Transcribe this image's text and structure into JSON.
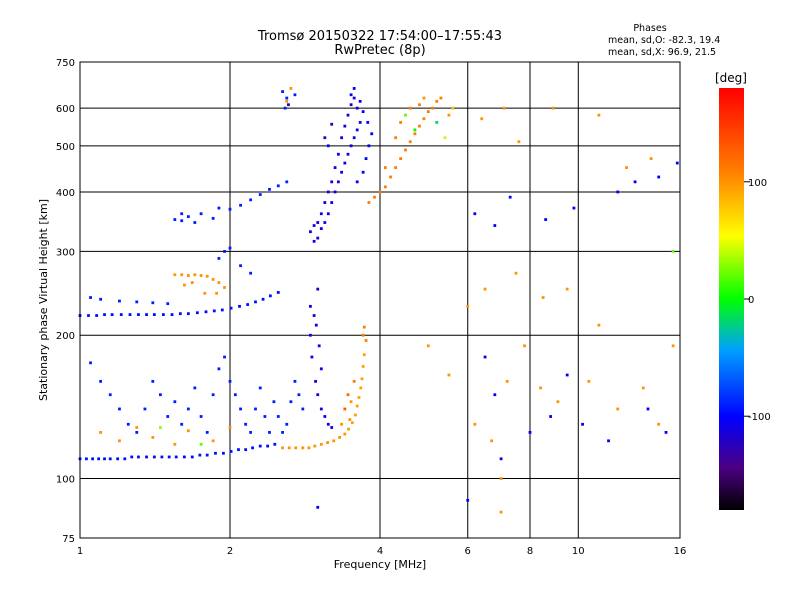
{
  "title": "Tromsø 20150322 17:54:00–17:55:43",
  "subtitle": "RwPretec (8p)",
  "stats": {
    "heading": "Phases",
    "line_o": "mean, sd,O: -82.3, 19.4",
    "line_x": "mean, sd,X:  96.9, 21.5"
  },
  "colorbar": {
    "label": "[deg]",
    "ticks": [
      {
        "value": 100,
        "label": "100"
      },
      {
        "value": 0,
        "label": "0"
      },
      {
        "value": -100,
        "label": "-100"
      }
    ],
    "range": [
      -180,
      180
    ]
  },
  "chart_data": {
    "type": "scatter",
    "title": "Tromsø 20150322 17:54:00–17:55:43",
    "subtitle": "RwPretec (8p)",
    "xlabel": "Frequency [MHz]",
    "ylabel": "Stationary phase Virtual Height [km]",
    "x_scale": "log",
    "y_scale": "log",
    "xlim": [
      1,
      16
    ],
    "ylim": [
      75,
      750
    ],
    "xticks": [
      {
        "value": 1,
        "label": "1"
      },
      {
        "value": 2,
        "label": "2"
      },
      {
        "value": 4,
        "label": "4"
      },
      {
        "value": 6,
        "label": "6"
      },
      {
        "value": 8,
        "label": "8"
      },
      {
        "value": 10,
        "label": "10"
      },
      {
        "value": 16,
        "label": "16"
      }
    ],
    "yticks": [
      {
        "value": 75,
        "label": "75"
      },
      {
        "value": 100,
        "label": "100"
      },
      {
        "value": 200,
        "label": "200"
      },
      {
        "value": 300,
        "label": "300"
      },
      {
        "value": 400,
        "label": "400"
      },
      {
        "value": 500,
        "label": "500"
      },
      {
        "value": 600,
        "label": "600"
      },
      {
        "value": 750,
        "label": "750"
      }
    ],
    "grid": true,
    "color_scale": "rainbow, phase in degrees (-180 black/purple to 180 red)",
    "points": [
      [
        1.0,
        110,
        -95
      ],
      [
        1.03,
        110,
        -95
      ],
      [
        1.06,
        110,
        -95
      ],
      [
        1.09,
        110,
        -95
      ],
      [
        1.12,
        110,
        -95
      ],
      [
        1.15,
        110,
        -95
      ],
      [
        1.19,
        110,
        -95
      ],
      [
        1.23,
        110,
        -95
      ],
      [
        1.27,
        111,
        -95
      ],
      [
        1.31,
        111,
        -95
      ],
      [
        1.36,
        111,
        -95
      ],
      [
        1.41,
        111,
        -95
      ],
      [
        1.46,
        111,
        -95
      ],
      [
        1.51,
        111,
        -95
      ],
      [
        1.56,
        111,
        -95
      ],
      [
        1.62,
        111,
        -95
      ],
      [
        1.68,
        111,
        -95
      ],
      [
        1.74,
        112,
        -95
      ],
      [
        1.8,
        112,
        -95
      ],
      [
        1.87,
        113,
        -95
      ],
      [
        1.94,
        113,
        -95
      ],
      [
        2.01,
        114,
        -95
      ],
      [
        2.08,
        115,
        -95
      ],
      [
        2.15,
        115,
        -95
      ],
      [
        2.22,
        116,
        -95
      ],
      [
        2.3,
        117,
        -95
      ],
      [
        2.38,
        117,
        -95
      ],
      [
        2.46,
        118,
        -95
      ],
      [
        2.55,
        116,
        100
      ],
      [
        2.63,
        116,
        100
      ],
      [
        2.71,
        116,
        100
      ],
      [
        2.8,
        116,
        100
      ],
      [
        2.88,
        116,
        100
      ],
      [
        2.96,
        117,
        100
      ],
      [
        3.05,
        118,
        100
      ],
      [
        3.14,
        119,
        100
      ],
      [
        3.23,
        120,
        100
      ],
      [
        3.32,
        122,
        100
      ],
      [
        3.4,
        124,
        100
      ],
      [
        3.46,
        127,
        95
      ],
      [
        3.52,
        131,
        95
      ],
      [
        3.57,
        136,
        95
      ],
      [
        3.6,
        142,
        95
      ],
      [
        3.63,
        148,
        95
      ],
      [
        3.66,
        155,
        95
      ],
      [
        3.68,
        162,
        95
      ],
      [
        3.7,
        172,
        95
      ],
      [
        3.72,
        182,
        95
      ],
      [
        3.4,
        140,
        130
      ],
      [
        3.45,
        150,
        120
      ],
      [
        3.5,
        145,
        100
      ],
      [
        3.55,
        160,
        110
      ],
      [
        3.48,
        133,
        100
      ],
      [
        3.35,
        130,
        100
      ],
      [
        1.0,
        220,
        -95
      ],
      [
        1.04,
        220,
        -95
      ],
      [
        1.08,
        220,
        -95
      ],
      [
        1.12,
        221,
        -95
      ],
      [
        1.16,
        221,
        -95
      ],
      [
        1.21,
        221,
        -95
      ],
      [
        1.26,
        221,
        -95
      ],
      [
        1.31,
        221,
        -95
      ],
      [
        1.36,
        221,
        -95
      ],
      [
        1.41,
        221,
        -95
      ],
      [
        1.47,
        221,
        -95
      ],
      [
        1.53,
        221,
        -95
      ],
      [
        1.59,
        222,
        -95
      ],
      [
        1.65,
        222,
        -95
      ],
      [
        1.72,
        223,
        -95
      ],
      [
        1.79,
        224,
        -95
      ],
      [
        1.86,
        225,
        -95
      ],
      [
        1.93,
        226,
        -95
      ],
      [
        2.01,
        228,
        -95
      ],
      [
        2.09,
        230,
        -95
      ],
      [
        2.17,
        232,
        -95
      ],
      [
        2.25,
        235,
        -95
      ],
      [
        2.33,
        238,
        -95
      ],
      [
        2.41,
        242,
        -95
      ],
      [
        2.5,
        246,
        -95
      ],
      [
        1.55,
        268,
        100
      ],
      [
        1.6,
        268,
        100
      ],
      [
        1.65,
        267,
        100
      ],
      [
        1.7,
        268,
        100
      ],
      [
        1.75,
        267,
        100
      ],
      [
        1.8,
        266,
        100
      ],
      [
        1.85,
        262,
        100
      ],
      [
        1.9,
        258,
        100
      ],
      [
        1.95,
        252,
        100
      ],
      [
        1.62,
        255,
        100
      ],
      [
        1.68,
        258,
        100
      ],
      [
        1.78,
        245,
        100
      ],
      [
        1.88,
        245,
        100
      ],
      [
        1.05,
        240,
        -90
      ],
      [
        1.1,
        238,
        -90
      ],
      [
        1.2,
        236,
        -90
      ],
      [
        1.3,
        235,
        -90
      ],
      [
        1.4,
        234,
        -90
      ],
      [
        1.5,
        233,
        -90
      ],
      [
        1.6,
        360,
        -90
      ],
      [
        1.65,
        355,
        -90
      ],
      [
        1.75,
        360,
        -90
      ],
      [
        1.9,
        370,
        -90
      ],
      [
        2.0,
        368,
        -90
      ],
      [
        2.1,
        375,
        -90
      ],
      [
        2.2,
        385,
        -90
      ],
      [
        2.3,
        395,
        -90
      ],
      [
        2.4,
        405,
        -90
      ],
      [
        2.5,
        412,
        -90
      ],
      [
        2.6,
        420,
        -90
      ],
      [
        1.55,
        350,
        -90
      ],
      [
        1.6,
        348,
        -90
      ],
      [
        1.7,
        345,
        -90
      ],
      [
        1.85,
        352,
        -90
      ],
      [
        1.95,
        300,
        -90
      ],
      [
        2.0,
        305,
        -90
      ],
      [
        2.1,
        280,
        -90
      ],
      [
        2.2,
        270,
        -90
      ],
      [
        1.9,
        290,
        -90
      ],
      [
        2.9,
        330,
        -110
      ],
      [
        2.95,
        340,
        -110
      ],
      [
        3.0,
        320,
        -110
      ],
      [
        3.05,
        335,
        -110
      ],
      [
        3.1,
        345,
        -110
      ],
      [
        3.15,
        360,
        -110
      ],
      [
        3.2,
        380,
        -110
      ],
      [
        3.25,
        400,
        -110
      ],
      [
        3.3,
        420,
        -110
      ],
      [
        3.35,
        440,
        -110
      ],
      [
        3.4,
        460,
        -110
      ],
      [
        3.45,
        480,
        -110
      ],
      [
        3.5,
        500,
        -110
      ],
      [
        3.55,
        520,
        -110
      ],
      [
        3.6,
        540,
        -110
      ],
      [
        3.65,
        560,
        -110
      ],
      [
        3.6,
        600,
        -110
      ],
      [
        3.55,
        630,
        -110
      ],
      [
        3.5,
        610,
        -110
      ],
      [
        3.45,
        580,
        -110
      ],
      [
        3.4,
        550,
        -110
      ],
      [
        3.35,
        520,
        -110
      ],
      [
        3.3,
        480,
        -110
      ],
      [
        3.25,
        450,
        -110
      ],
      [
        3.2,
        420,
        -110
      ],
      [
        3.15,
        400,
        -110
      ],
      [
        3.1,
        380,
        -110
      ],
      [
        3.05,
        360,
        -110
      ],
      [
        3.0,
        345,
        -110
      ],
      [
        2.95,
        315,
        -110
      ],
      [
        3.6,
        420,
        -100
      ],
      [
        3.7,
        440,
        -100
      ],
      [
        3.75,
        470,
        -100
      ],
      [
        3.8,
        500,
        -100
      ],
      [
        3.85,
        530,
        -100
      ],
      [
        3.78,
        560,
        -100
      ],
      [
        3.7,
        590,
        -100
      ],
      [
        3.65,
        620,
        -100
      ],
      [
        3.55,
        660,
        -100
      ],
      [
        3.5,
        640,
        -100
      ],
      [
        3.8,
        380,
        110
      ],
      [
        3.9,
        390,
        110
      ],
      [
        4.0,
        400,
        110
      ],
      [
        4.1,
        410,
        110
      ],
      [
        4.2,
        430,
        110
      ],
      [
        4.3,
        450,
        110
      ],
      [
        4.4,
        470,
        110
      ],
      [
        4.5,
        490,
        110
      ],
      [
        4.6,
        510,
        110
      ],
      [
        4.7,
        530,
        110
      ],
      [
        4.8,
        550,
        110
      ],
      [
        4.9,
        570,
        110
      ],
      [
        5.0,
        590,
        110
      ],
      [
        5.1,
        600,
        110
      ],
      [
        5.2,
        620,
        110
      ],
      [
        5.3,
        630,
        110
      ],
      [
        4.1,
        450,
        110
      ],
      [
        4.3,
        520,
        110
      ],
      [
        4.4,
        560,
        110
      ],
      [
        4.6,
        600,
        110
      ],
      [
        4.8,
        610,
        110
      ],
      [
        4.5,
        580,
        20
      ],
      [
        4.7,
        540,
        0
      ],
      [
        5.2,
        560,
        -20
      ],
      [
        5.4,
        520,
        40
      ],
      [
        5.5,
        580,
        100
      ],
      [
        5.6,
        600,
        80
      ],
      [
        4.9,
        630,
        100
      ],
      [
        2.55,
        650,
        -90
      ],
      [
        2.58,
        600,
        -90
      ],
      [
        2.6,
        630,
        -90
      ],
      [
        2.7,
        640,
        -90
      ],
      [
        2.62,
        610,
        -120
      ],
      [
        2.6,
        620,
        100
      ],
      [
        2.65,
        660,
        100
      ],
      [
        3.1,
        520,
        -120
      ],
      [
        3.2,
        555,
        -120
      ],
      [
        3.15,
        500,
        -100
      ],
      [
        2.9,
        200,
        -110
      ],
      [
        2.95,
        220,
        -110
      ],
      [
        3.0,
        250,
        -110
      ],
      [
        2.92,
        180,
        -110
      ],
      [
        2.97,
        160,
        -110
      ],
      [
        3.0,
        150,
        -110
      ],
      [
        3.05,
        140,
        -110
      ],
      [
        3.1,
        135,
        -110
      ],
      [
        3.15,
        130,
        -110
      ],
      [
        3.2,
        128,
        -110
      ],
      [
        3.05,
        170,
        -110
      ],
      [
        3.02,
        190,
        -110
      ],
      [
        2.98,
        210,
        -110
      ],
      [
        2.9,
        230,
        -110
      ],
      [
        1.05,
        175,
        -90
      ],
      [
        1.1,
        160,
        -90
      ],
      [
        1.15,
        150,
        -90
      ],
      [
        1.2,
        140,
        -90
      ],
      [
        1.25,
        130,
        -90
      ],
      [
        1.3,
        125,
        -90
      ],
      [
        1.35,
        140,
        -90
      ],
      [
        1.4,
        160,
        -90
      ],
      [
        1.45,
        150,
        -90
      ],
      [
        1.5,
        135,
        -90
      ],
      [
        1.55,
        145,
        -90
      ],
      [
        1.6,
        130,
        -90
      ],
      [
        1.65,
        140,
        -90
      ],
      [
        1.7,
        155,
        -90
      ],
      [
        1.75,
        135,
        -90
      ],
      [
        1.8,
        125,
        -90
      ],
      [
        1.85,
        150,
        -90
      ],
      [
        1.9,
        170,
        -90
      ],
      [
        1.95,
        180,
        -90
      ],
      [
        2.0,
        160,
        -90
      ],
      [
        2.05,
        150,
        -90
      ],
      [
        2.1,
        140,
        -90
      ],
      [
        2.15,
        130,
        -90
      ],
      [
        2.2,
        125,
        -90
      ],
      [
        2.25,
        140,
        -90
      ],
      [
        2.3,
        155,
        -90
      ],
      [
        2.35,
        135,
        -90
      ],
      [
        2.4,
        125,
        -90
      ],
      [
        2.45,
        145,
        -90
      ],
      [
        2.5,
        135,
        -90
      ],
      [
        2.55,
        125,
        -90
      ],
      [
        2.6,
        130,
        -90
      ],
      [
        2.65,
        145,
        -90
      ],
      [
        2.7,
        160,
        -90
      ],
      [
        2.75,
        150,
        -90
      ],
      [
        2.8,
        140,
        -90
      ],
      [
        1.1,
        125,
        100
      ],
      [
        1.2,
        120,
        100
      ],
      [
        1.3,
        128,
        100
      ],
      [
        1.4,
        122,
        100
      ],
      [
        1.55,
        118,
        100
      ],
      [
        1.65,
        126,
        100
      ],
      [
        1.85,
        120,
        100
      ],
      [
        2.0,
        128,
        100
      ],
      [
        1.75,
        118,
        20
      ],
      [
        1.45,
        128,
        30
      ],
      [
        3.75,
        195,
        110
      ],
      [
        3.7,
        200,
        110
      ],
      [
        3.72,
        208,
        110
      ],
      [
        5.0,
        190,
        100
      ],
      [
        5.5,
        165,
        100
      ],
      [
        6.2,
        130,
        100
      ],
      [
        6.7,
        120,
        100
      ],
      [
        7.2,
        160,
        100
      ],
      [
        7.8,
        190,
        100
      ],
      [
        8.4,
        155,
        100
      ],
      [
        9.1,
        145,
        100
      ],
      [
        10.5,
        160,
        100
      ],
      [
        12.0,
        140,
        100
      ],
      [
        13.5,
        155,
        100
      ],
      [
        14.5,
        130,
        100
      ],
      [
        15.5,
        190,
        100
      ],
      [
        6.5,
        180,
        -100
      ],
      [
        6.8,
        150,
        -100
      ],
      [
        7.0,
        110,
        -100
      ],
      [
        8.0,
        125,
        -100
      ],
      [
        8.8,
        135,
        -100
      ],
      [
        9.5,
        165,
        -100
      ],
      [
        10.2,
        130,
        -100
      ],
      [
        11.5,
        120,
        -100
      ],
      [
        13.8,
        140,
        -100
      ],
      [
        15.0,
        125,
        -100
      ],
      [
        6.0,
        230,
        100
      ],
      [
        6.5,
        250,
        100
      ],
      [
        7.5,
        270,
        100
      ],
      [
        8.5,
        240,
        100
      ],
      [
        9.5,
        250,
        100
      ],
      [
        11.0,
        210,
        100
      ],
      [
        6.2,
        360,
        -100
      ],
      [
        6.8,
        340,
        -100
      ],
      [
        7.3,
        390,
        -100
      ],
      [
        8.6,
        350,
        -100
      ],
      [
        9.8,
        370,
        -100
      ],
      [
        12.0,
        400,
        -100
      ],
      [
        13.0,
        420,
        -100
      ],
      [
        14.5,
        430,
        -100
      ],
      [
        15.8,
        460,
        -100
      ],
      [
        6.4,
        570,
        100
      ],
      [
        7.1,
        600,
        100
      ],
      [
        7.6,
        510,
        100
      ],
      [
        8.9,
        600,
        100
      ],
      [
        11.0,
        580,
        100
      ],
      [
        12.5,
        450,
        100
      ],
      [
        14.0,
        470,
        100
      ],
      [
        7.0,
        100,
        100
      ],
      [
        7.0,
        85,
        100
      ],
      [
        6.0,
        90,
        -100
      ],
      [
        3.0,
        87,
        -100
      ],
      [
        15.5,
        300,
        20
      ]
    ]
  }
}
